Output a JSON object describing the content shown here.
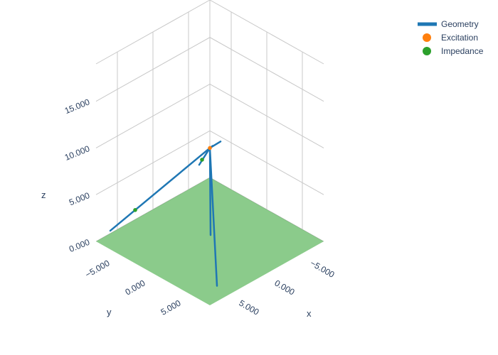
{
  "chart_data": {
    "type": "scatter3d",
    "legend": {
      "placement": "top-right",
      "entries": [
        {
          "name": "Geometry",
          "symbol": "line",
          "color": "#1f77b4"
        },
        {
          "name": "Excitation",
          "symbol": "marker",
          "color": "#ff7f0e"
        },
        {
          "name": "Impedance",
          "symbol": "marker",
          "color": "#2ca02c"
        }
      ]
    },
    "axes": {
      "x": {
        "title": "x",
        "range": [
          -8,
          8
        ],
        "ticks": [
          -5,
          0,
          5
        ],
        "tick_labels": [
          "−5.000",
          "0.000",
          "5.000"
        ]
      },
      "y": {
        "title": "y",
        "range": [
          -8,
          8
        ],
        "ticks": [
          -5,
          0,
          5
        ],
        "tick_labels": [
          "−5.000",
          "0.000",
          "5.000"
        ]
      },
      "z": {
        "title": "z",
        "range": [
          0,
          19
        ],
        "ticks": [
          0,
          5,
          10,
          15
        ],
        "tick_labels": [
          "0.000",
          "5.000",
          "10.000",
          "15.000"
        ]
      }
    },
    "ground_plane": {
      "z": 0,
      "color": "#2ca02c",
      "opacity": 0.55
    },
    "series": [
      {
        "name": "Geometry",
        "segments": [
          [
            [
              0,
              0,
              10
            ],
            [
              -6.5,
              -8,
              2
            ]
          ],
          [
            [
              0,
              0,
              10
            ],
            [
              -2.5,
              -1,
              9.2
            ]
          ],
          [
            [
              0,
              0,
              10
            ],
            [
              -0.7,
              -0.3,
              9.8
            ]
          ],
          [
            [
              0,
              0,
              10
            ],
            [
              8,
              -6,
              2
            ]
          ],
          [
            [
              0,
              0,
              10
            ],
            [
              1.5,
              1.6,
              2
            ]
          ],
          [
            [
              0,
              0,
              10
            ],
            [
              6,
              7,
              0.8
            ]
          ]
        ]
      },
      {
        "name": "Excitation",
        "points": [
          [
            0,
            0,
            10
          ]
        ]
      },
      {
        "name": "Impedance",
        "points": [
          [
            -5,
            -6.1,
            4
          ],
          [
            6,
            -4.5,
            4
          ]
        ]
      }
    ]
  }
}
